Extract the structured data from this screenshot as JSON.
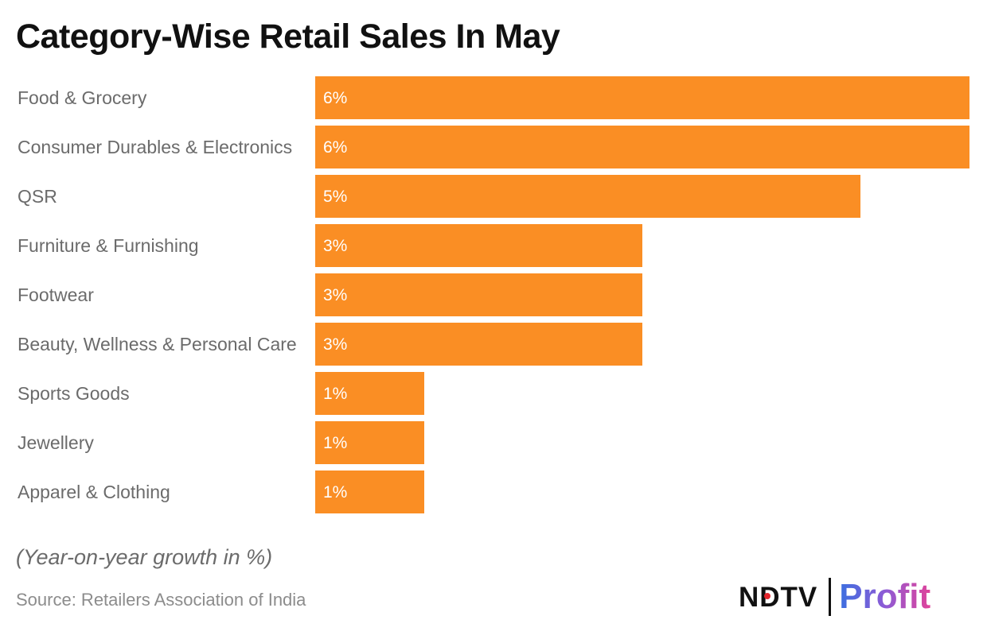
{
  "chart_data": {
    "type": "bar",
    "orientation": "horizontal",
    "title": "Category-Wise Retail Sales In May",
    "categories": [
      "Food & Grocery",
      "Consumer Durables & Electronics",
      "QSR",
      "Furniture & Furnishing",
      "Footwear",
      "Beauty, Wellness & Personal Care",
      "Sports Goods",
      "Jewellery",
      "Apparel & Clothing"
    ],
    "values": [
      6,
      6,
      5,
      3,
      3,
      3,
      1,
      1,
      1
    ],
    "data_labels": [
      "6%",
      "6%",
      "5%",
      "3%",
      "3%",
      "3%",
      "1%",
      "1%",
      "1%"
    ],
    "bar_color": "#fa8e24",
    "xlim": [
      0,
      6
    ],
    "grid": false,
    "xlabel": "",
    "ylabel": ""
  },
  "note": "(Year-on-year growth in %)",
  "source": "Source: Retailers Association of India",
  "logo": {
    "ndtv": "NDTV",
    "profit": "Profit"
  }
}
